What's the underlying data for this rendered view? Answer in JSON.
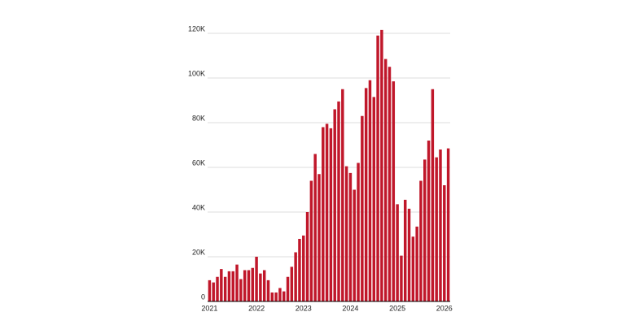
{
  "chart_data": {
    "type": "bar",
    "categories": [
      "2021",
      null,
      null,
      null,
      null,
      null,
      null,
      null,
      null,
      null,
      null,
      null,
      "2022",
      null,
      null,
      null,
      null,
      null,
      null,
      null,
      null,
      null,
      null,
      null,
      "2023",
      null,
      null,
      null,
      null,
      null,
      null,
      null,
      null,
      null,
      null,
      null,
      "2024",
      null,
      null,
      null,
      null,
      null,
      null,
      null,
      null,
      null,
      null,
      null,
      "2025",
      null,
      null,
      null,
      null,
      null,
      null,
      null,
      null,
      null,
      null,
      null,
      "2026",
      null
    ],
    "values": [
      9500,
      8500,
      11000,
      14500,
      11000,
      13500,
      13500,
      16500,
      10000,
      14000,
      14000,
      15000,
      20000,
      12500,
      14000,
      9500,
      4000,
      4000,
      6000,
      4500,
      11000,
      15500,
      22000,
      28000,
      29500,
      40000,
      54000,
      66000,
      57000,
      78000,
      79500,
      77500,
      86000,
      89500,
      95000,
      60500,
      57500,
      50000,
      62000,
      83000,
      95500,
      99000,
      91500,
      119000,
      121500,
      108500,
      105000,
      98500,
      43500,
      20500,
      45500,
      41500,
      29000,
      33500,
      54000,
      63500,
      72000,
      95000,
      64500,
      68000,
      52000,
      68500
    ],
    "color": "#c0172a",
    "ylim": [
      0,
      120000
    ],
    "yticks": [
      0,
      {
        "value": 20000,
        "label": "20K"
      },
      {
        "value": 40000,
        "label": "40K"
      },
      {
        "value": 60000,
        "label": "60K"
      },
      {
        "value": 80000,
        "label": "80K"
      },
      {
        "value": 100000,
        "label": "100K"
      },
      {
        "value": 120000,
        "label": "120K"
      }
    ],
    "grid": true
  }
}
